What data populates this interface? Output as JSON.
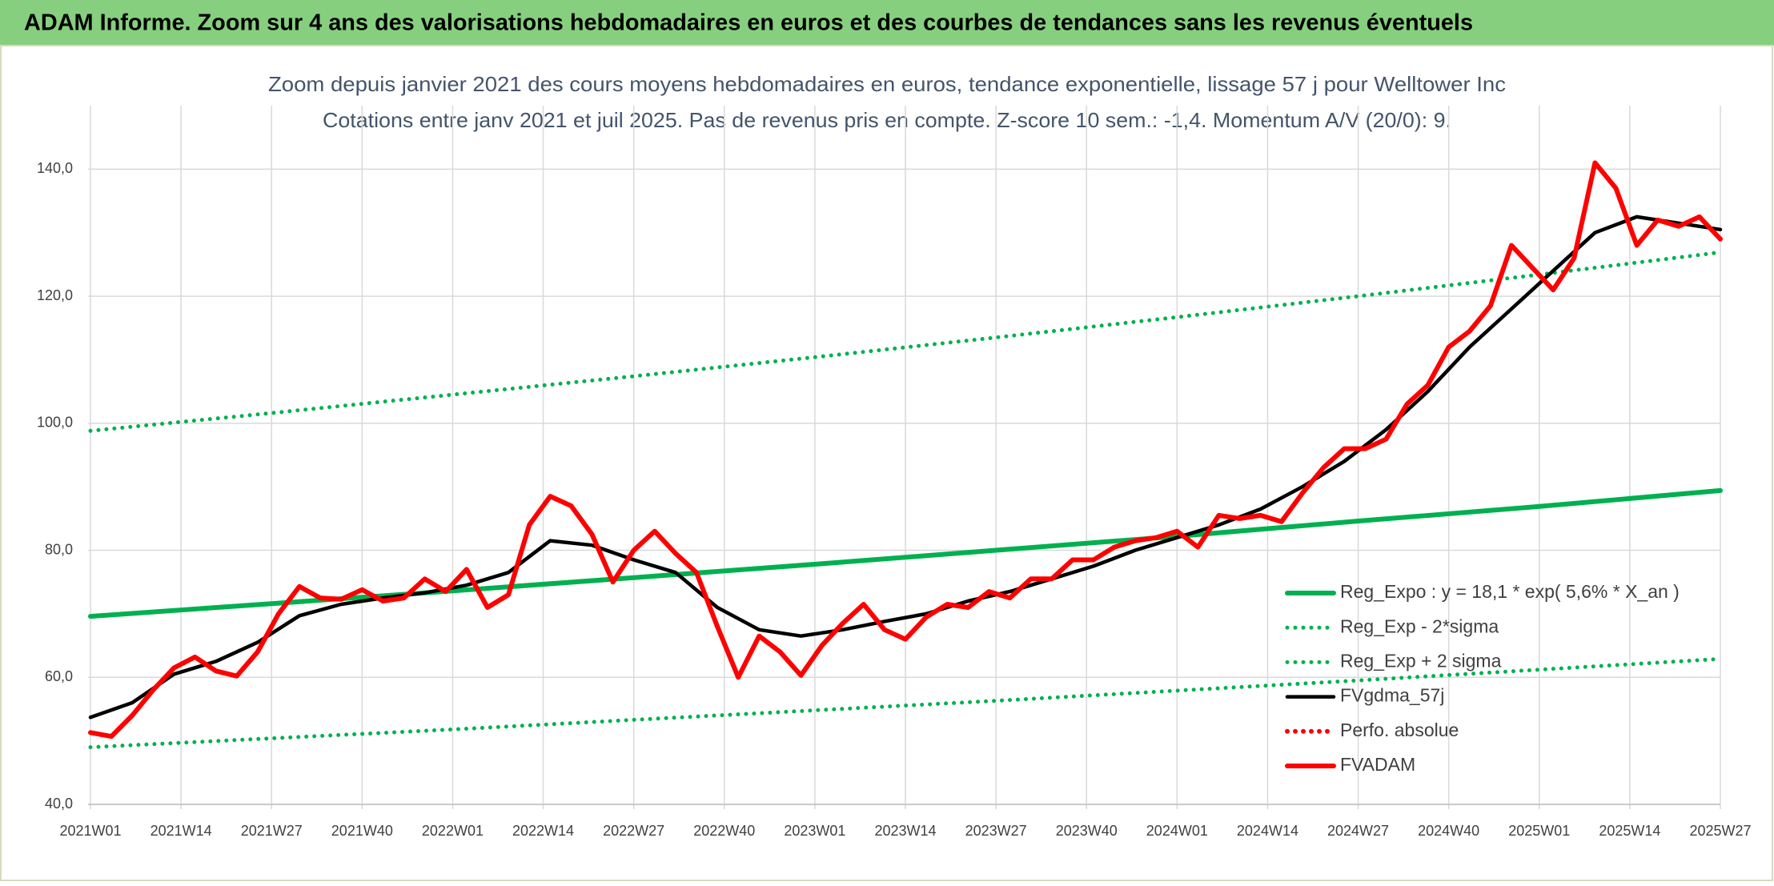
{
  "header": {
    "title": "ADAM Informe. Zoom sur 4 ans des valorisations hebdomadaires en euros et des courbes de tendances sans les revenus éventuels"
  },
  "chart_data": {
    "type": "line",
    "title": "Zoom depuis janvier 2021 des cours moyens hebdomadaires en euros, tendance exponentielle, lissage 57 j pour Welltower Inc",
    "subtitle": "Cotations entre janv 2021 et juil 2025. Pas de revenus pris en compte. Z-score 10 sem.: -1,4. Momentum A/V (20/0): 9.",
    "xlim": [
      0,
      234
    ],
    "xticks": [
      {
        "value": 0,
        "label": "2021W01"
      },
      {
        "value": 13,
        "label": "2021W14"
      },
      {
        "value": 26,
        "label": "2021W27"
      },
      {
        "value": 39,
        "label": "2021W40"
      },
      {
        "value": 52,
        "label": "2022W01"
      },
      {
        "value": 65,
        "label": "2022W14"
      },
      {
        "value": 78,
        "label": "2022W27"
      },
      {
        "value": 91,
        "label": "2022W40"
      },
      {
        "value": 104,
        "label": "2023W01"
      },
      {
        "value": 117,
        "label": "2023W14"
      },
      {
        "value": 130,
        "label": "2023W27"
      },
      {
        "value": 143,
        "label": "2023W40"
      },
      {
        "value": 156,
        "label": "2024W01"
      },
      {
        "value": 169,
        "label": "2024W14"
      },
      {
        "value": 182,
        "label": "2024W27"
      },
      {
        "value": 195,
        "label": "2024W40"
      },
      {
        "value": 208,
        "label": "2025W01"
      },
      {
        "value": 221,
        "label": "2025W14"
      },
      {
        "value": 234,
        "label": "2025W27"
      }
    ],
    "ylim": [
      40,
      150
    ],
    "yticks": [
      {
        "value": 40,
        "label": "40,0"
      },
      {
        "value": 60,
        "label": "60,0"
      },
      {
        "value": 80,
        "label": "80,0"
      },
      {
        "value": 100,
        "label": "100,0"
      },
      {
        "value": 120,
        "label": "120,0"
      },
      {
        "value": 140,
        "label": "140,0"
      }
    ],
    "grid": true,
    "legend": "lower right",
    "series": [
      {
        "name": "Reg_Expo : y = 18,1 * exp( 5,6% *  X_an )",
        "color": "#00b050",
        "style": "solid",
        "x": [
          0,
          26,
          52,
          78,
          104,
          130,
          156,
          182,
          208,
          234
        ],
        "values": [
          69.6,
          71.6,
          73.6,
          75.7,
          77.8,
          80.0,
          82.2,
          84.6,
          86.9,
          89.4
        ]
      },
      {
        "name": "Reg_Exp - 2*sigma",
        "color": "#00b050",
        "style": "dotted",
        "x": [
          0,
          26,
          52,
          78,
          104,
          130,
          156,
          182,
          208,
          234
        ],
        "values": [
          49.0,
          50.4,
          51.8,
          53.3,
          54.8,
          56.3,
          57.9,
          59.5,
          61.2,
          62.9
        ]
      },
      {
        "name": "Reg_Exp + 2 sigma",
        "color": "#00b050",
        "style": "dotted",
        "x": [
          0,
          26,
          52,
          78,
          104,
          130,
          156,
          182,
          208,
          234
        ],
        "values": [
          98.8,
          101.6,
          104.5,
          107.4,
          110.4,
          113.5,
          116.7,
          120.0,
          123.4,
          126.9
        ]
      },
      {
        "name": "FVgdma_57j",
        "color": "#000000",
        "style": "solid",
        "x": [
          0,
          6,
          12,
          18,
          24,
          30,
          36,
          42,
          48,
          54,
          60,
          66,
          72,
          78,
          84,
          90,
          96,
          102,
          108,
          114,
          120,
          126,
          132,
          138,
          144,
          150,
          156,
          162,
          168,
          174,
          180,
          186,
          192,
          198,
          204,
          210,
          216,
          222,
          228,
          234
        ],
        "values": [
          53.7,
          56,
          60.5,
          62.5,
          65.5,
          69.7,
          71.5,
          72.5,
          73.3,
          74.5,
          76.5,
          81.5,
          80.8,
          78.5,
          76.5,
          71,
          67.5,
          66.5,
          67.5,
          68.8,
          70,
          72,
          73.5,
          75.5,
          77.5,
          80,
          82,
          84,
          86.5,
          90,
          94,
          99,
          105,
          112,
          118,
          124,
          130,
          132.5,
          131.5,
          130.5
        ]
      },
      {
        "name": "Perfo. absolue",
        "color": "#ff0000",
        "style": "dotted",
        "x": [],
        "values": []
      },
      {
        "name": "FVADAM",
        "color": "#ff0000",
        "style": "solid",
        "x": [
          0,
          3,
          6,
          9,
          12,
          15,
          18,
          21,
          24,
          27,
          30,
          33,
          36,
          39,
          42,
          45,
          48,
          51,
          54,
          57,
          60,
          63,
          66,
          69,
          72,
          75,
          78,
          81,
          84,
          87,
          90,
          93,
          96,
          99,
          102,
          105,
          108,
          111,
          114,
          117,
          120,
          123,
          126,
          129,
          132,
          135,
          138,
          141,
          144,
          147,
          150,
          153,
          156,
          159,
          162,
          165,
          168,
          171,
          174,
          177,
          180,
          183,
          186,
          189,
          192,
          195,
          198,
          201,
          204,
          207,
          210,
          213,
          216,
          219,
          222,
          225,
          228,
          231,
          234
        ],
        "values": [
          51.3,
          50.7,
          54,
          58,
          61.5,
          63.2,
          61,
          60.2,
          64,
          70,
          74.3,
          72.5,
          72.3,
          73.8,
          72,
          72.5,
          75.5,
          73.5,
          77,
          71,
          73,
          84,
          88.5,
          87,
          82.5,
          75,
          80,
          83,
          79.5,
          76.5,
          68,
          60,
          66.5,
          64,
          60.3,
          65,
          68.5,
          71.5,
          67.5,
          66,
          69.5,
          71.5,
          71,
          73.5,
          72.5,
          75.5,
          75.5,
          78.5,
          78.5,
          80.5,
          81.5,
          82,
          83,
          80.5,
          85.5,
          85,
          85.5,
          84.5,
          89,
          93,
          96,
          96,
          97.5,
          103,
          106,
          112,
          114.5,
          118.5,
          128,
          124.5,
          121,
          126,
          141,
          137,
          128,
          132,
          131,
          132.5,
          129
        ]
      }
    ]
  }
}
